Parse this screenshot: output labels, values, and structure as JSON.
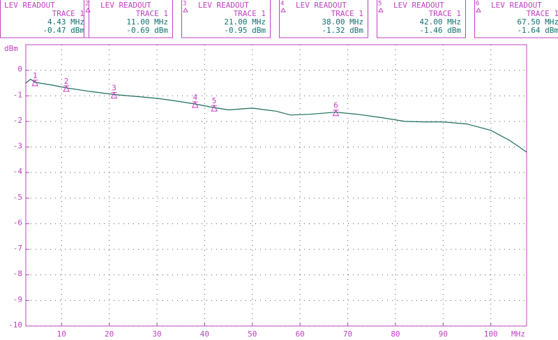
{
  "chart_data": {
    "type": "line",
    "y_unit": "dBm",
    "x_unit": "MHz",
    "xlim": [
      2.5,
      107.5
    ],
    "ylim": [
      -10,
      1
    ],
    "xticks": [
      10,
      20,
      30,
      40,
      50,
      60,
      70,
      80,
      90,
      100
    ],
    "yticks": [
      0,
      -1,
      -2,
      -3,
      -4,
      -5,
      -6,
      -7,
      -8,
      -9,
      -10
    ],
    "grid": true,
    "series": [
      {
        "name": "TRACE 1",
        "color": "#1a6b5a",
        "x": [
          2.5,
          3.5,
          4.43,
          8,
          11,
          16,
          21,
          26,
          30,
          34,
          38,
          42,
          45,
          50,
          55,
          58,
          62,
          67.5,
          72,
          77,
          82,
          86,
          90,
          95,
          100,
          104,
          107.5
        ],
        "values": [
          -0.5,
          -0.35,
          -0.47,
          -0.58,
          -0.69,
          -0.83,
          -0.95,
          -1.03,
          -1.1,
          -1.2,
          -1.32,
          -1.46,
          -1.55,
          -1.48,
          -1.6,
          -1.75,
          -1.72,
          -1.64,
          -1.72,
          -1.85,
          -2.0,
          -2.02,
          -2.02,
          -2.1,
          -2.35,
          -2.75,
          -3.2
        ]
      }
    ],
    "markers": [
      {
        "number": "1",
        "title": "LEV READOUT",
        "trace": "TRACE 1",
        "x": 4.43,
        "value": -0.47,
        "x_label": "4.43 MHz",
        "value_label": "-0.47 dBm"
      },
      {
        "number": "2",
        "title": "LEV READOUT",
        "trace": "TRACE 1",
        "x": 11,
        "value": -0.69,
        "x_label": "11.00 MHz",
        "value_label": "-0.69 dBm"
      },
      {
        "number": "3",
        "title": "LEV READOUT",
        "trace": "TRACE 1",
        "x": 21,
        "value": -0.95,
        "x_label": "21.00 MHz",
        "value_label": "-0.95 dBm"
      },
      {
        "number": "4",
        "title": "LEV READOUT",
        "trace": "TRACE 1",
        "x": 38,
        "value": -1.32,
        "x_label": "38.00 MHz",
        "value_label": "-1.32 dBm"
      },
      {
        "number": "5",
        "title": "LEV READOUT",
        "trace": "TRACE 1",
        "x": 42,
        "value": -1.46,
        "x_label": "42.00 MHz",
        "value_label": "-1.46 dBm"
      },
      {
        "number": "6",
        "title": "LEV READOUT",
        "trace": "TRACE 1",
        "x": 67.5,
        "value": -1.64,
        "x_label": "67.50 MHz",
        "value_label": "-1.64 dBm"
      }
    ]
  }
}
